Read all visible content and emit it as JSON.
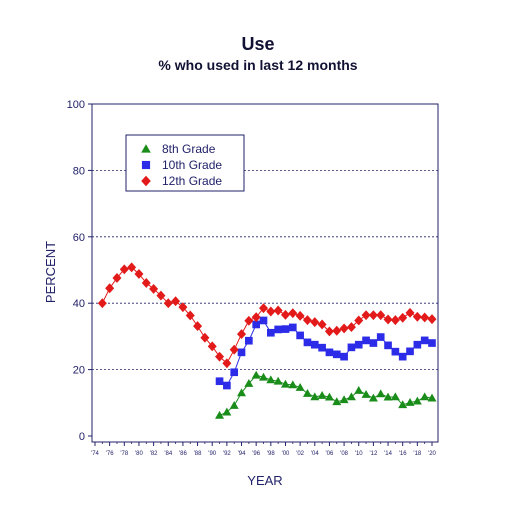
{
  "chart_data": {
    "type": "line",
    "title": "Use",
    "subtitle": "% who used in last 12 months",
    "xlabel": "YEAR",
    "ylabel": "PERCENT",
    "xlim": [
      1974,
      2020
    ],
    "ylim": [
      0,
      100
    ],
    "y_ticks": [
      0,
      20,
      40,
      60,
      80,
      100
    ],
    "x_tick_values": [
      1974,
      1976,
      1978,
      1980,
      1982,
      1984,
      1986,
      1988,
      1990,
      1992,
      1994,
      1996,
      1998,
      2000,
      2002,
      2004,
      2006,
      2008,
      2010,
      2012,
      2014,
      2016,
      2018,
      2020
    ],
    "x_tick_labels": [
      "'74",
      "'76",
      "'78",
      "'80",
      "'82",
      "'84",
      "'86",
      "'88",
      "'90",
      "'92",
      "'94",
      "'96",
      "'98",
      "'00",
      "'02",
      "'04",
      "'06",
      "'08",
      "'10",
      "'12",
      "'14",
      "'16",
      "'18",
      "'20"
    ],
    "grid": "horizontal dashed",
    "legend_position": "top-left",
    "series": [
      {
        "name": "8th Grade",
        "marker": "triangle",
        "color": "#1a8c1a",
        "x": [
          1991,
          1992,
          1993,
          1994,
          1995,
          1996,
          1997,
          1998,
          1999,
          2000,
          2001,
          2002,
          2003,
          2004,
          2005,
          2006,
          2007,
          2008,
          2009,
          2010,
          2011,
          2012,
          2013,
          2014,
          2015,
          2016,
          2017,
          2018,
          2019,
          2020
        ],
        "values": [
          6.2,
          7.2,
          9.2,
          13.0,
          15.8,
          18.3,
          17.7,
          16.9,
          16.5,
          15.6,
          15.4,
          14.6,
          12.8,
          11.8,
          12.2,
          11.7,
          10.3,
          10.9,
          11.8,
          13.7,
          12.5,
          11.4,
          12.7,
          11.7,
          11.8,
          9.4,
          10.1,
          10.5,
          11.8,
          11.4
        ]
      },
      {
        "name": "10th Grade",
        "marker": "square",
        "color": "#2b2be8",
        "x": [
          1991,
          1992,
          1993,
          1994,
          1995,
          1996,
          1997,
          1998,
          1999,
          2000,
          2001,
          2002,
          2003,
          2004,
          2005,
          2006,
          2007,
          2008,
          2009,
          2010,
          2011,
          2012,
          2013,
          2014,
          2015,
          2016,
          2017,
          2018,
          2019,
          2020
        ],
        "values": [
          16.5,
          15.2,
          19.2,
          25.2,
          28.7,
          33.6,
          34.8,
          31.1,
          32.1,
          32.2,
          32.7,
          30.3,
          28.2,
          27.5,
          26.6,
          25.2,
          24.6,
          23.9,
          26.7,
          27.5,
          28.8,
          28.0,
          29.8,
          27.3,
          25.4,
          23.9,
          25.5,
          27.5,
          28.8,
          28.0
        ]
      },
      {
        "name": "12th Grade",
        "marker": "diamond",
        "color": "#e31a1a",
        "x": [
          1975,
          1976,
          1977,
          1978,
          1979,
          1980,
          1981,
          1982,
          1983,
          1984,
          1985,
          1986,
          1987,
          1988,
          1989,
          1990,
          1991,
          1992,
          1993,
          1994,
          1995,
          1996,
          1997,
          1998,
          1999,
          2000,
          2001,
          2002,
          2003,
          2004,
          2005,
          2006,
          2007,
          2008,
          2009,
          2010,
          2011,
          2012,
          2013,
          2014,
          2015,
          2016,
          2017,
          2018,
          2019,
          2020
        ],
        "values": [
          40.0,
          44.5,
          47.6,
          50.2,
          50.8,
          48.8,
          46.1,
          44.3,
          42.3,
          40.0,
          40.6,
          38.8,
          36.3,
          33.1,
          29.6,
          27.0,
          23.9,
          21.9,
          26.0,
          30.7,
          34.7,
          35.8,
          38.5,
          37.5,
          37.8,
          36.5,
          37.0,
          36.2,
          34.9,
          34.3,
          33.6,
          31.5,
          31.7,
          32.4,
          32.8,
          34.8,
          36.4,
          36.4,
          36.4,
          35.1,
          34.9,
          35.6,
          37.1,
          35.9,
          35.7,
          35.2
        ]
      }
    ]
  }
}
